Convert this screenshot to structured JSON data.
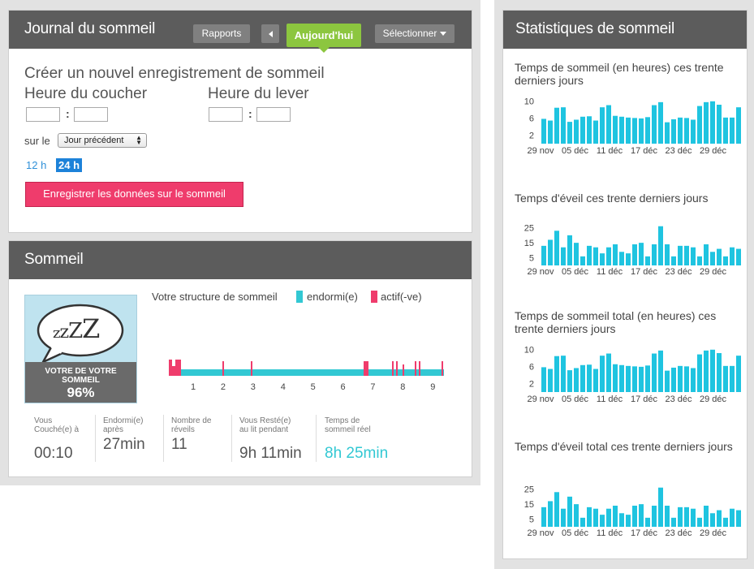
{
  "journal": {
    "title": "Journal du sommeil",
    "reports_label": "Rapports",
    "today_label": "Aujourd'hui",
    "select_label": "Sélectionner",
    "create_heading": "Créer un nouvel enregistrement de sommeil",
    "bedtime_label": "Heure du coucher",
    "waketime_label": "Heure du lever",
    "bed_hour": "",
    "bed_min": "",
    "wake_hour": "",
    "wake_min": "",
    "day_prefix": "sur le",
    "day_selected": "Jour précédent",
    "format_12": "12 h",
    "format_24": "24 h",
    "save_label": "Enregistrer les données sur le sommeil"
  },
  "sleep": {
    "title": "Sommeil",
    "efficiency_caption": "VOTRE DE VOTRE SOMMEIL",
    "efficiency_value": "96%",
    "zzz": "ZZZZ",
    "structure_label": "Votre structure de sommeil",
    "asleep_label": "endormi(e)",
    "active_label": "actif(-ve)",
    "hour_ticks": [
      "1",
      "2",
      "3",
      "4",
      "5",
      "6",
      "7",
      "8",
      "9"
    ],
    "stats": [
      {
        "caption": "Vous Couché(e) à",
        "value": "00:10"
      },
      {
        "caption": "Endormi(e) après",
        "value": "27min"
      },
      {
        "caption": "Nombre de réveils",
        "value": "11"
      },
      {
        "caption": "Vous Resté(e) au lit pendant",
        "value": "9h 11min"
      },
      {
        "caption": "Temps de sommeil réel",
        "value": "8h 25min"
      }
    ],
    "colors": {
      "asleep": "#32c8d3",
      "active": "#ef3c6c"
    }
  },
  "statistics": {
    "title": "Statistiques de sommeil",
    "charts": [
      {
        "title": "Temps de sommeil (en heures) ces trente derniers jours"
      },
      {
        "title": "Temps d'éveil ces trente derniers jours"
      },
      {
        "title": "Temps de sommeil total (en heures) ces trente derniers jours"
      },
      {
        "title": "Temps d'éveil total ces trente derniers jours"
      }
    ]
  },
  "chart_data": [
    {
      "type": "bar",
      "title": "Temps de sommeil (en heures) ces trente derniers jours",
      "x_tick_labels": [
        "29 nov",
        "05 déc",
        "11 déc",
        "17 déc",
        "23 déc",
        "29 déc"
      ],
      "y_ticks": [
        2,
        6,
        10
      ],
      "ylim": [
        0,
        11
      ],
      "color": "#1fc4e0",
      "values": [
        5.8,
        5.4,
        8.4,
        8.5,
        5.1,
        5.6,
        6.3,
        6.4,
        5.4,
        8.5,
        9.0,
        6.5,
        6.3,
        6.1,
        6.0,
        5.9,
        6.2,
        9.0,
        9.7,
        5.0,
        5.7,
        6.1,
        6.0,
        5.6,
        8.8,
        9.7,
        9.9,
        9.1,
        6.1,
        6.1,
        8.5
      ]
    },
    {
      "type": "bar",
      "title": "Temps d'éveil ces trente derniers jours",
      "x_tick_labels": [
        "29 nov",
        "05 déc",
        "11 déc",
        "17 déc",
        "23 déc",
        "29 déc"
      ],
      "y_ticks": [
        5,
        15,
        25
      ],
      "ylim": [
        0,
        28
      ],
      "color": "#1fc4e0",
      "values": [
        13,
        17,
        23,
        12,
        20,
        15,
        6,
        13,
        12,
        8,
        12,
        14,
        9,
        8,
        14,
        15,
        6,
        14,
        26,
        14,
        6,
        13,
        13,
        12,
        6,
        14,
        9,
        11,
        6,
        12,
        11
      ]
    },
    {
      "type": "bar",
      "title": "Temps de sommeil total (en heures) ces trente derniers jours",
      "x_tick_labels": [
        "29 nov",
        "05 déc",
        "11 déc",
        "17 déc",
        "23 déc",
        "29 déc"
      ],
      "y_ticks": [
        2,
        6,
        10
      ],
      "ylim": [
        0,
        11
      ],
      "color": "#1fc4e0",
      "values": [
        5.8,
        5.4,
        8.4,
        8.5,
        5.1,
        5.6,
        6.3,
        6.4,
        5.4,
        8.5,
        9.0,
        6.5,
        6.3,
        6.1,
        6.0,
        5.9,
        6.2,
        9.0,
        9.7,
        5.0,
        5.7,
        6.1,
        6.0,
        5.6,
        8.8,
        9.7,
        9.9,
        9.1,
        6.1,
        6.1,
        8.5
      ]
    },
    {
      "type": "bar",
      "title": "Temps d'éveil total ces trente derniers jours",
      "x_tick_labels": [
        "29 nov",
        "05 déc",
        "11 déc",
        "17 déc",
        "23 déc",
        "29 déc"
      ],
      "y_ticks": [
        5,
        15,
        25
      ],
      "ylim": [
        0,
        28
      ],
      "color": "#1fc4e0",
      "values": [
        13,
        17,
        23,
        12,
        20,
        15,
        6,
        13,
        12,
        8,
        12,
        14,
        9,
        8,
        14,
        15,
        6,
        14,
        26,
        14,
        6,
        13,
        13,
        12,
        6,
        14,
        9,
        11,
        6,
        12,
        11
      ]
    }
  ]
}
